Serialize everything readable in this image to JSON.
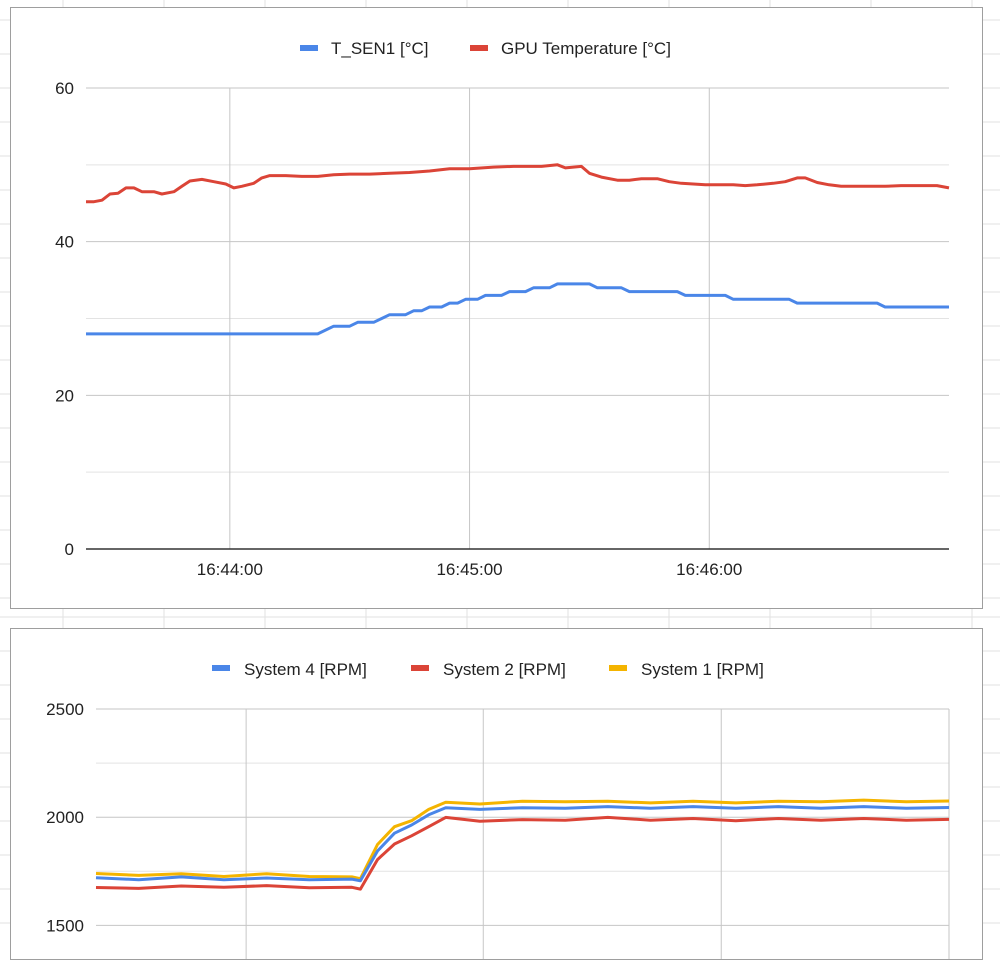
{
  "colors": {
    "series_blue": "#4a86e8",
    "series_red": "#db4437",
    "series_yellow": "#f4b400",
    "grid": "#cccccc",
    "axis": "#333333"
  },
  "chart_data": [
    {
      "type": "line",
      "title": "",
      "xlabel": "",
      "ylabel": "",
      "ylim": [
        0,
        60
      ],
      "yticks": [
        "0",
        "20",
        "40",
        "60"
      ],
      "xticks": [
        "16:44:00",
        "16:45:00",
        "16:46:00"
      ],
      "xlim": [
        "16:43:24",
        "16:47:00"
      ],
      "grid": true,
      "legend_position": "top",
      "series": [
        {
          "name": "T_SEN1 [°C]",
          "color": "#4a86e8",
          "points": [
            [
              "16:43:24",
              28
            ],
            [
              "16:43:38",
              28
            ],
            [
              "16:43:52",
              28
            ],
            [
              "16:44:06",
              28
            ],
            [
              "16:44:20",
              28
            ],
            [
              "16:44:22",
              28
            ],
            [
              "16:44:26",
              29
            ],
            [
              "16:44:30",
              29
            ],
            [
              "16:44:32",
              29.5
            ],
            [
              "16:44:36",
              29.5
            ],
            [
              "16:44:38",
              30
            ],
            [
              "16:44:40",
              30.5
            ],
            [
              "16:44:44",
              30.5
            ],
            [
              "16:44:46",
              31
            ],
            [
              "16:44:48",
              31
            ],
            [
              "16:44:50",
              31.5
            ],
            [
              "16:44:53",
              31.5
            ],
            [
              "16:44:55",
              32
            ],
            [
              "16:44:57",
              32
            ],
            [
              "16:44:59",
              32.5
            ],
            [
              "16:45:02",
              32.5
            ],
            [
              "16:45:04",
              33
            ],
            [
              "16:45:08",
              33
            ],
            [
              "16:45:10",
              33.5
            ],
            [
              "16:45:14",
              33.5
            ],
            [
              "16:45:16",
              34
            ],
            [
              "16:45:20",
              34
            ],
            [
              "16:45:22",
              34.5
            ],
            [
              "16:45:30",
              34.5
            ],
            [
              "16:45:32",
              34
            ],
            [
              "16:45:38",
              34
            ],
            [
              "16:45:40",
              33.5
            ],
            [
              "16:45:52",
              33.5
            ],
            [
              "16:45:54",
              33
            ],
            [
              "16:46:04",
              33
            ],
            [
              "16:46:06",
              32.5
            ],
            [
              "16:46:20",
              32.5
            ],
            [
              "16:46:22",
              32
            ],
            [
              "16:46:42",
              32
            ],
            [
              "16:46:44",
              31.5
            ],
            [
              "16:47:00",
              31.5
            ]
          ]
        },
        {
          "name": "GPU Temperature [°C]",
          "color": "#db4437",
          "points": [
            [
              "16:43:24",
              45.2
            ],
            [
              "16:43:26",
              45.2
            ],
            [
              "16:43:28",
              45.4
            ],
            [
              "16:43:30",
              46.2
            ],
            [
              "16:43:32",
              46.3
            ],
            [
              "16:43:34",
              47
            ],
            [
              "16:43:36",
              47
            ],
            [
              "16:43:38",
              46.5
            ],
            [
              "16:43:41",
              46.5
            ],
            [
              "16:43:43",
              46.2
            ],
            [
              "16:43:46",
              46.5
            ],
            [
              "16:43:48",
              47.2
            ],
            [
              "16:43:50",
              47.9
            ],
            [
              "16:43:53",
              48.1
            ],
            [
              "16:43:56",
              47.8
            ],
            [
              "16:43:59",
              47.5
            ],
            [
              "16:44:01",
              47
            ],
            [
              "16:44:03",
              47.2
            ],
            [
              "16:44:06",
              47.6
            ],
            [
              "16:44:08",
              48.3
            ],
            [
              "16:44:10",
              48.6
            ],
            [
              "16:44:14",
              48.6
            ],
            [
              "16:44:18",
              48.5
            ],
            [
              "16:44:22",
              48.5
            ],
            [
              "16:44:26",
              48.7
            ],
            [
              "16:44:30",
              48.8
            ],
            [
              "16:44:35",
              48.8
            ],
            [
              "16:44:40",
              48.9
            ],
            [
              "16:44:45",
              49
            ],
            [
              "16:44:50",
              49.2
            ],
            [
              "16:44:55",
              49.5
            ],
            [
              "16:45:00",
              49.5
            ],
            [
              "16:45:06",
              49.7
            ],
            [
              "16:45:11",
              49.8
            ],
            [
              "16:45:18",
              49.8
            ],
            [
              "16:45:22",
              50
            ],
            [
              "16:45:24",
              49.6
            ],
            [
              "16:45:28",
              49.8
            ],
            [
              "16:45:30",
              48.9
            ],
            [
              "16:45:33",
              48.4
            ],
            [
              "16:45:37",
              48
            ],
            [
              "16:45:40",
              48
            ],
            [
              "16:45:43",
              48.2
            ],
            [
              "16:45:47",
              48.2
            ],
            [
              "16:45:50",
              47.8
            ],
            [
              "16:45:53",
              47.6
            ],
            [
              "16:45:56",
              47.5
            ],
            [
              "16:45:59",
              47.4
            ],
            [
              "16:46:02",
              47.4
            ],
            [
              "16:46:06",
              47.4
            ],
            [
              "16:46:09",
              47.3
            ],
            [
              "16:46:12",
              47.4
            ],
            [
              "16:46:16",
              47.6
            ],
            [
              "16:46:19",
              47.8
            ],
            [
              "16:46:22",
              48.3
            ],
            [
              "16:46:24",
              48.3
            ],
            [
              "16:46:27",
              47.7
            ],
            [
              "16:46:30",
              47.4
            ],
            [
              "16:46:33",
              47.2
            ],
            [
              "16:46:37",
              47.2
            ],
            [
              "16:46:40",
              47.2
            ],
            [
              "16:46:44",
              47.2
            ],
            [
              "16:46:48",
              47.3
            ],
            [
              "16:46:51",
              47.3
            ],
            [
              "16:46:54",
              47.3
            ],
            [
              "16:46:57",
              47.3
            ],
            [
              "16:47:00",
              47
            ]
          ]
        }
      ]
    },
    {
      "type": "line",
      "title": "",
      "xlabel": "",
      "ylabel": "",
      "ylim": [
        1500,
        2500
      ],
      "visible_yrange": [
        1220,
        2500
      ],
      "yticks": [
        "1500",
        "2000",
        "2500"
      ],
      "grid": true,
      "legend_position": "top",
      "x_range": [
        0,
        100
      ],
      "series": [
        {
          "name": "System 4 [RPM]",
          "color": "#4a86e8",
          "points": [
            [
              0,
              1720
            ],
            [
              5,
              1715
            ],
            [
              10,
              1720
            ],
            [
              15,
              1715
            ],
            [
              20,
              1715
            ],
            [
              25,
              1715
            ],
            [
              30,
              1710
            ],
            [
              31,
              1710
            ],
            [
              33,
              1840
            ],
            [
              35,
              1930
            ],
            [
              37,
              1960
            ],
            [
              39,
              2015
            ],
            [
              41,
              2040
            ],
            [
              45,
              2040
            ],
            [
              50,
              2040
            ],
            [
              55,
              2045
            ],
            [
              60,
              2045
            ],
            [
              65,
              2045
            ],
            [
              70,
              2045
            ],
            [
              75,
              2045
            ],
            [
              80,
              2045
            ],
            [
              85,
              2045
            ],
            [
              90,
              2045
            ],
            [
              95,
              2045
            ],
            [
              100,
              2045
            ]
          ]
        },
        {
          "name": "System 2 [RPM]",
          "color": "#db4437",
          "points": [
            [
              0,
              1675
            ],
            [
              5,
              1675
            ],
            [
              10,
              1678
            ],
            [
              15,
              1680
            ],
            [
              20,
              1680
            ],
            [
              25,
              1678
            ],
            [
              30,
              1672
            ],
            [
              31,
              1672
            ],
            [
              33,
              1800
            ],
            [
              35,
              1880
            ],
            [
              37,
              1910
            ],
            [
              39,
              1960
            ],
            [
              41,
              1995
            ],
            [
              45,
              1985
            ],
            [
              50,
              1985
            ],
            [
              55,
              1990
            ],
            [
              60,
              1995
            ],
            [
              65,
              1990
            ],
            [
              70,
              1990
            ],
            [
              75,
              1988
            ],
            [
              80,
              1990
            ],
            [
              85,
              1990
            ],
            [
              90,
              1990
            ],
            [
              95,
              1990
            ],
            [
              100,
              1990
            ]
          ]
        },
        {
          "name": "System 1 [RPM]",
          "color": "#f4b400",
          "points": [
            [
              0,
              1740
            ],
            [
              5,
              1735
            ],
            [
              10,
              1735
            ],
            [
              15,
              1730
            ],
            [
              20,
              1735
            ],
            [
              25,
              1730
            ],
            [
              30,
              1720
            ],
            [
              31,
              1720
            ],
            [
              33,
              1870
            ],
            [
              35,
              1960
            ],
            [
              37,
              1980
            ],
            [
              39,
              2040
            ],
            [
              41,
              2065
            ],
            [
              45,
              2065
            ],
            [
              50,
              2070
            ],
            [
              55,
              2075
            ],
            [
              60,
              2070
            ],
            [
              65,
              2070
            ],
            [
              70,
              2070
            ],
            [
              75,
              2070
            ],
            [
              80,
              2070
            ],
            [
              85,
              2075
            ],
            [
              90,
              2075
            ],
            [
              95,
              2075
            ],
            [
              100,
              2075
            ]
          ]
        }
      ]
    }
  ]
}
